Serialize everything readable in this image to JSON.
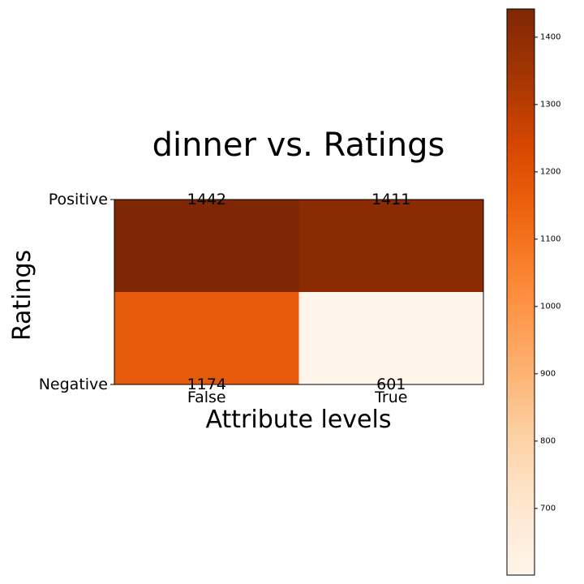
{
  "chart_data": {
    "type": "heatmap",
    "title": "dinner vs. Ratings",
    "xlabel": "Attribute levels",
    "ylabel": "Ratings",
    "x_categories": [
      "False",
      "True"
    ],
    "y_categories": [
      "Positive",
      "Negative"
    ],
    "values": [
      [
        1442,
        1411
      ],
      [
        1174,
        601
      ]
    ],
    "cell_labels": [
      [
        "1442",
        "1411"
      ],
      [
        "1174",
        "601"
      ]
    ],
    "colormap": "Oranges",
    "color_range": [
      601,
      1442
    ],
    "colorbar": {
      "ticks": [
        700,
        800,
        900,
        1000,
        1100,
        1200,
        1300,
        1400
      ],
      "tick_labels": [
        "700",
        "800",
        "900",
        "1000",
        "1100",
        "1200",
        "1300",
        "1400"
      ]
    }
  }
}
